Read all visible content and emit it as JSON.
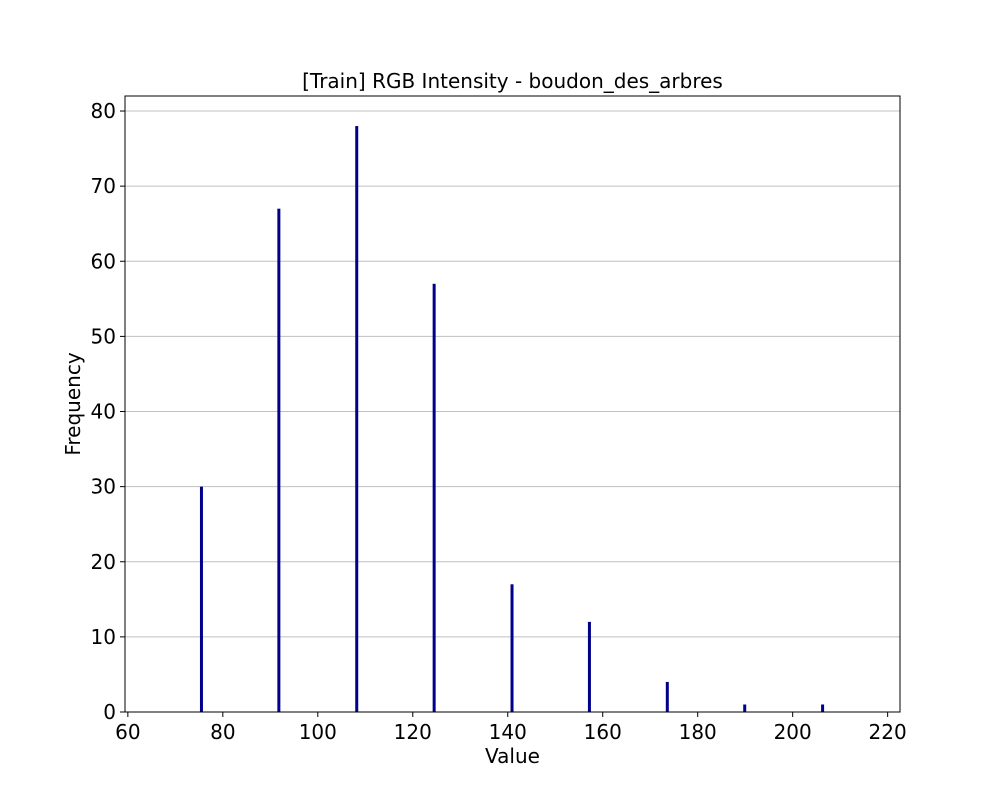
{
  "chart_data": {
    "type": "bar",
    "title": "[Train] RGB Intensity - boudon_des_arbres",
    "xlabel": "Value",
    "ylabel": "Frequency",
    "xlim": [
      59.4,
      222.6
    ],
    "ylim": [
      0,
      82
    ],
    "x_ticks": [
      60,
      80,
      100,
      120,
      140,
      160,
      180,
      200,
      220
    ],
    "y_ticks": [
      0,
      10,
      20,
      30,
      40,
      50,
      60,
      70,
      80
    ],
    "grid": "y",
    "bar_color": "#00008b",
    "bars": [
      {
        "x": 75.5,
        "value": 30
      },
      {
        "x": 91.8,
        "value": 67
      },
      {
        "x": 108.2,
        "value": 78
      },
      {
        "x": 124.5,
        "value": 57
      },
      {
        "x": 140.9,
        "value": 17
      },
      {
        "x": 157.2,
        "value": 12
      },
      {
        "x": 173.6,
        "value": 4
      },
      {
        "x": 189.9,
        "value": 1
      },
      {
        "x": 206.3,
        "value": 1
      }
    ]
  }
}
